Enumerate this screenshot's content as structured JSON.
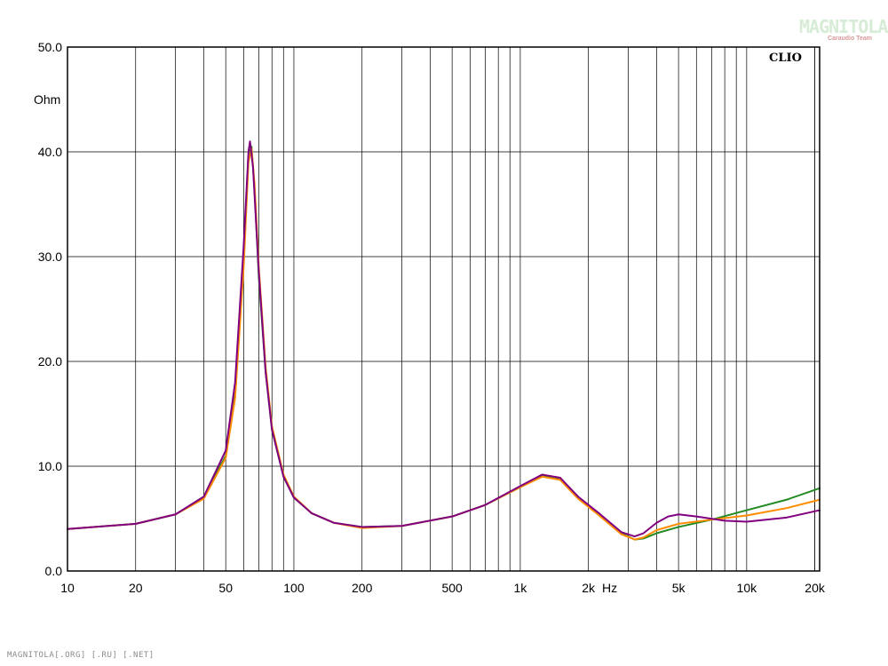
{
  "watermark": {
    "logo_text": "MAGNITOLA",
    "logo_sub": "Caraudio Team",
    "footer": "MAGNITOLA[.ORG] [.RU] [.NET]"
  },
  "chart_data": {
    "type": "line",
    "title": "",
    "brand_label": "CLIO",
    "xlabel": "Hz",
    "ylabel": "Ohm",
    "xscale": "log",
    "xlim": [
      10,
      21000
    ],
    "ylim": [
      0,
      50
    ],
    "grid": true,
    "x_ticks": [
      {
        "value": 10,
        "label": "10"
      },
      {
        "value": 20,
        "label": "20"
      },
      {
        "value": 50,
        "label": "50"
      },
      {
        "value": 100,
        "label": "100"
      },
      {
        "value": 200,
        "label": "200"
      },
      {
        "value": 500,
        "label": "500"
      },
      {
        "value": 1000,
        "label": "1k"
      },
      {
        "value": 2000,
        "label": "2k"
      },
      {
        "value": 5000,
        "label": "5k"
      },
      {
        "value": 10000,
        "label": "10k"
      },
      {
        "value": 20000,
        "label": "20k"
      }
    ],
    "y_ticks": [
      {
        "value": 0,
        "label": "0.0"
      },
      {
        "value": 10,
        "label": "10.0"
      },
      {
        "value": 20,
        "label": "20.0"
      },
      {
        "value": 30,
        "label": "30.0"
      },
      {
        "value": 40,
        "label": "40.0"
      },
      {
        "value": 50,
        "label": "50.0"
      }
    ],
    "series": [
      {
        "color": "#228b22",
        "points": [
          [
            10,
            4.0
          ],
          [
            20,
            4.5
          ],
          [
            30,
            5.4
          ],
          [
            40,
            7.0
          ],
          [
            50,
            11.0
          ],
          [
            55,
            17.0
          ],
          [
            60,
            30.0
          ],
          [
            63,
            39.5
          ],
          [
            65,
            40.5
          ],
          [
            67,
            36.5
          ],
          [
            70,
            28.0
          ],
          [
            75,
            19.0
          ],
          [
            80,
            13.5
          ],
          [
            90,
            9.0
          ],
          [
            100,
            7.0
          ],
          [
            120,
            5.5
          ],
          [
            150,
            4.6
          ],
          [
            200,
            4.2
          ],
          [
            300,
            4.3
          ],
          [
            500,
            5.2
          ],
          [
            700,
            6.3
          ],
          [
            1000,
            8.0
          ],
          [
            1250,
            9.1
          ],
          [
            1500,
            8.8
          ],
          [
            1800,
            7.0
          ],
          [
            2200,
            5.5
          ],
          [
            2800,
            3.6
          ],
          [
            3200,
            3.0
          ],
          [
            3500,
            3.1
          ],
          [
            4000,
            3.6
          ],
          [
            5000,
            4.2
          ],
          [
            7000,
            4.9
          ],
          [
            10000,
            5.8
          ],
          [
            15000,
            6.8
          ],
          [
            21000,
            7.9
          ]
        ]
      },
      {
        "color": "#ff8c00",
        "points": [
          [
            10,
            4.0
          ],
          [
            20,
            4.5
          ],
          [
            30,
            5.4
          ],
          [
            40,
            6.9
          ],
          [
            50,
            10.8
          ],
          [
            55,
            16.5
          ],
          [
            60,
            29.0
          ],
          [
            63,
            39.0
          ],
          [
            65,
            40.3
          ],
          [
            67,
            37.0
          ],
          [
            70,
            29.0
          ],
          [
            75,
            19.5
          ],
          [
            80,
            13.8
          ],
          [
            90,
            9.2
          ],
          [
            100,
            7.1
          ],
          [
            120,
            5.5
          ],
          [
            150,
            4.6
          ],
          [
            200,
            4.1
          ],
          [
            300,
            4.3
          ],
          [
            500,
            5.2
          ],
          [
            700,
            6.3
          ],
          [
            1000,
            8.0
          ],
          [
            1250,
            9.0
          ],
          [
            1500,
            8.7
          ],
          [
            1800,
            6.9
          ],
          [
            2200,
            5.4
          ],
          [
            2800,
            3.5
          ],
          [
            3200,
            3.0
          ],
          [
            3500,
            3.2
          ],
          [
            4000,
            3.9
          ],
          [
            5000,
            4.5
          ],
          [
            7000,
            4.9
          ],
          [
            10000,
            5.3
          ],
          [
            15000,
            6.0
          ],
          [
            21000,
            6.8
          ]
        ]
      },
      {
        "color": "#800080",
        "points": [
          [
            10,
            4.0
          ],
          [
            20,
            4.5
          ],
          [
            30,
            5.4
          ],
          [
            40,
            7.1
          ],
          [
            50,
            11.5
          ],
          [
            55,
            18.0
          ],
          [
            60,
            31.0
          ],
          [
            63,
            40.0
          ],
          [
            64,
            41.0
          ],
          [
            66,
            38.5
          ],
          [
            70,
            28.5
          ],
          [
            75,
            19.0
          ],
          [
            80,
            13.5
          ],
          [
            90,
            9.0
          ],
          [
            100,
            7.0
          ],
          [
            120,
            5.5
          ],
          [
            150,
            4.6
          ],
          [
            200,
            4.2
          ],
          [
            300,
            4.3
          ],
          [
            500,
            5.2
          ],
          [
            700,
            6.3
          ],
          [
            1000,
            8.1
          ],
          [
            1250,
            9.2
          ],
          [
            1500,
            8.9
          ],
          [
            1800,
            7.1
          ],
          [
            2200,
            5.6
          ],
          [
            2800,
            3.7
          ],
          [
            3200,
            3.3
          ],
          [
            3500,
            3.6
          ],
          [
            4000,
            4.6
          ],
          [
            4500,
            5.2
          ],
          [
            5000,
            5.4
          ],
          [
            6000,
            5.2
          ],
          [
            8000,
            4.8
          ],
          [
            10000,
            4.7
          ],
          [
            15000,
            5.1
          ],
          [
            21000,
            5.8
          ]
        ]
      }
    ]
  }
}
